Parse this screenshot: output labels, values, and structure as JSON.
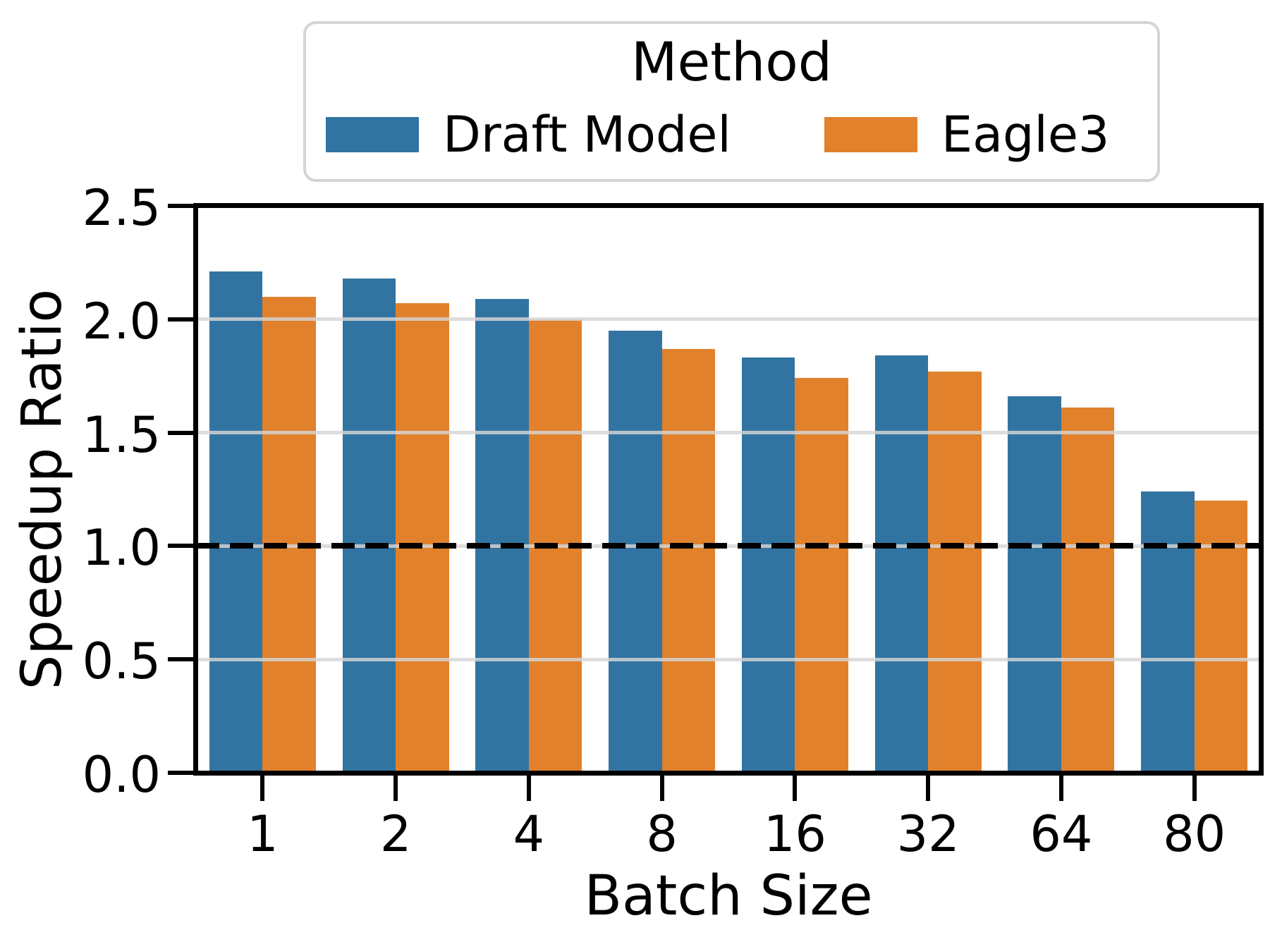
{
  "legend": {
    "title": "Method",
    "entries": [
      {
        "label": "Draft Model",
        "color": "#3274a1"
      },
      {
        "label": "Eagle3",
        "color": "#e1812c"
      }
    ]
  },
  "axes": {
    "xlabel": "Batch Size",
    "ylabel": "Speedup Ratio"
  },
  "chart_data": {
    "type": "bar",
    "title": "",
    "categories": [
      "1",
      "2",
      "4",
      "8",
      "16",
      "32",
      "64",
      "80"
    ],
    "series": [
      {
        "name": "Draft Model",
        "color": "#3274a1",
        "values": [
          2.21,
          2.18,
          2.09,
          1.95,
          1.83,
          1.84,
          1.66,
          1.24
        ]
      },
      {
        "name": "Eagle3",
        "color": "#e1812c",
        "values": [
          2.1,
          2.07,
          2.0,
          1.87,
          1.74,
          1.77,
          1.61,
          1.2
        ]
      }
    ],
    "xlabel": "Batch Size",
    "ylabel": "Speedup Ratio",
    "ylim": [
      0.0,
      2.5
    ],
    "ytick_labels": [
      "0.0",
      "0.5",
      "1.0",
      "1.5",
      "2.0",
      "2.5"
    ],
    "gridlines": [
      0.5,
      1.0,
      1.5,
      2.0
    ],
    "grid_color": "#d9d9d9",
    "grid_on": true,
    "reference_line": {
      "y": 1.0,
      "color": "#000000",
      "style": "dashed"
    },
    "legend": {
      "title": "Method",
      "position": "top-center"
    },
    "bar_group_width_fraction": 0.8
  }
}
